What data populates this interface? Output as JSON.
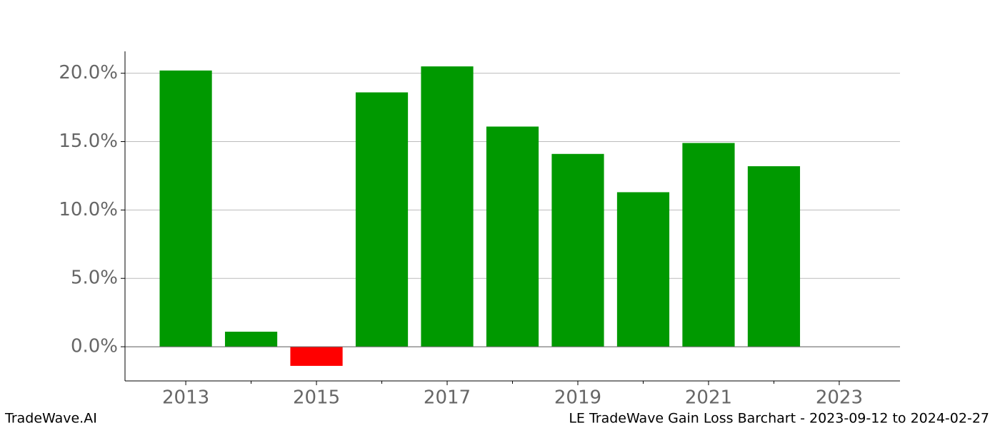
{
  "chart_data": {
    "type": "bar",
    "x": [
      2013,
      2014,
      2015,
      2016,
      2017,
      2018,
      2019,
      2020,
      2021,
      2022
    ],
    "values": [
      20.2,
      1.1,
      -1.4,
      18.6,
      20.5,
      16.1,
      14.1,
      11.3,
      14.9,
      13.2
    ],
    "positive_color": "#009900",
    "negative_color": "#ff0000",
    "xlim": [
      2012.07,
      2023.93
    ],
    "xticks": [
      2013,
      2015,
      2017,
      2019,
      2021,
      2023
    ],
    "xticks_minor": [
      2014,
      2016,
      2018,
      2020,
      2022
    ],
    "ylim": [
      -2.5,
      21.6
    ],
    "yticks": [
      {
        "value": 0,
        "label": "0.0%"
      },
      {
        "value": 5,
        "label": "5.0%"
      },
      {
        "value": 10,
        "label": "10.0%"
      },
      {
        "value": 15,
        "label": "15.0%"
      },
      {
        "value": 20,
        "label": "20.0%"
      }
    ],
    "grid": true
  },
  "footer": {
    "left": "TradeWave.AI",
    "right": "LE TradeWave Gain Loss Barchart - 2023-09-12 to 2024-02-27"
  }
}
